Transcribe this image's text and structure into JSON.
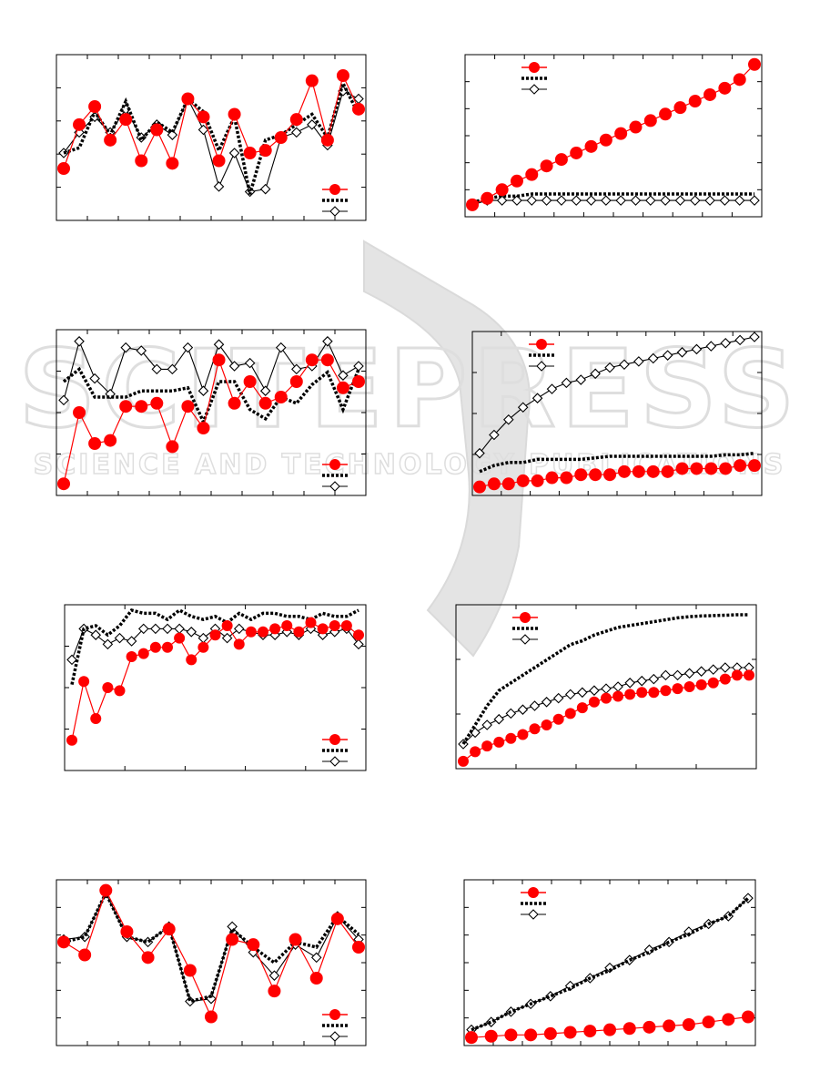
{
  "watermark": {
    "line1": "SCITEPRESS",
    "line2": "SCIENCE AND TECHNOLOGY PUBLICATIONS",
    "color": "#c8c8c8"
  },
  "colors": {
    "red": "#ff0000",
    "black": "#000000",
    "frame": "#000000"
  },
  "chart_data": [
    {
      "type": "line",
      "ylim": [
        0,
        6
      ],
      "x": [
        1,
        2,
        3,
        4,
        5,
        6,
        7,
        8,
        9,
        10,
        11,
        12,
        13,
        14,
        15,
        16,
        17,
        18,
        19,
        20
      ],
      "series": [
        {
          "values": [
            1.8,
            3.5,
            4.2,
            2.9,
            3.7,
            2.1,
            3.3,
            2.0,
            4.5,
            3.8,
            2.1,
            3.9,
            2.4,
            2.5,
            3.0,
            3.7,
            5.2,
            2.9,
            5.4,
            4.1
          ],
          "marker": "circle"
        },
        {
          "values": [
            2.4,
            2.6,
            4.0,
            3.1,
            4.4,
            2.9,
            3.6,
            3.2,
            4.5,
            4.0,
            2.5,
            3.8,
            0.8,
            2.9,
            3.1,
            3.5,
            3.9,
            3.0,
            5.1,
            3.9
          ],
          "marker": "none"
        },
        {
          "values": [
            2.4,
            3.2,
            3.8,
            3.2,
            4.1,
            3.0,
            3.5,
            3.1,
            4.5,
            3.3,
            1.1,
            2.4,
            0.9,
            1.0,
            3.0,
            3.2,
            3.5,
            2.7,
            4.8,
            4.5
          ],
          "marker": "diamond"
        }
      ],
      "legend": "bottom-right"
    },
    {
      "type": "line",
      "ylim": [
        0,
        7
      ],
      "x": [
        1,
        2,
        3,
        4,
        5,
        6,
        7,
        8,
        9,
        10,
        11,
        12,
        13,
        14,
        15,
        16,
        17,
        18,
        19,
        20
      ],
      "series": [
        {
          "values": [
            0.3,
            0.6,
            1.0,
            1.4,
            1.7,
            2.1,
            2.4,
            2.7,
            3.0,
            3.3,
            3.6,
            3.9,
            4.2,
            4.5,
            4.8,
            5.1,
            5.4,
            5.7,
            6.1,
            6.8
          ],
          "marker": "circle"
        },
        {
          "values": [
            0.4,
            0.6,
            0.7,
            0.7,
            0.8,
            0.8,
            0.8,
            0.8,
            0.8,
            0.8,
            0.8,
            0.8,
            0.8,
            0.8,
            0.8,
            0.8,
            0.8,
            0.8,
            0.8,
            0.8
          ],
          "marker": "none"
        },
        {
          "values": [
            0.3,
            0.5,
            0.5,
            0.5,
            0.5,
            0.5,
            0.5,
            0.5,
            0.5,
            0.5,
            0.5,
            0.5,
            0.5,
            0.5,
            0.5,
            0.5,
            0.5,
            0.5,
            0.5,
            0.5
          ],
          "marker": "diamond"
        }
      ],
      "legend": "top-left"
    },
    {
      "type": "line",
      "ylim": [
        0,
        5
      ],
      "x": [
        1,
        2,
        3,
        4,
        5,
        6,
        7,
        8,
        9,
        10,
        11,
        12,
        13,
        14,
        15,
        16,
        17,
        18,
        19,
        20
      ],
      "series": [
        {
          "values": [
            0.2,
            2.5,
            1.5,
            1.6,
            2.7,
            2.7,
            2.8,
            1.4,
            2.7,
            2.0,
            4.2,
            2.8,
            3.5,
            2.8,
            3.0,
            3.5,
            4.2,
            4.2,
            3.3,
            3.5
          ],
          "marker": "circle"
        },
        {
          "values": [
            3.5,
            3.9,
            3.0,
            3.0,
            3.0,
            3.2,
            3.2,
            3.2,
            3.3,
            2.2,
            3.5,
            3.5,
            2.6,
            2.3,
            3.0,
            2.8,
            3.4,
            3.8,
            2.6,
            3.9
          ],
          "marker": "none"
        },
        {
          "values": [
            2.9,
            4.8,
            3.6,
            3.1,
            4.6,
            4.5,
            3.9,
            3.9,
            4.6,
            3.2,
            4.7,
            4.0,
            4.1,
            3.2,
            4.6,
            3.9,
            4.0,
            4.8,
            3.7,
            4.0
          ],
          "marker": "diamond"
        }
      ],
      "legend": "bottom-right"
    },
    {
      "type": "line",
      "ylim": [
        0,
        5
      ],
      "x": [
        1,
        2,
        3,
        4,
        5,
        6,
        7,
        8,
        9,
        10,
        11,
        12,
        13,
        14,
        15,
        16,
        17,
        18,
        19,
        20
      ],
      "series": [
        {
          "values": [
            0.1,
            0.2,
            0.2,
            0.3,
            0.3,
            0.4,
            0.4,
            0.5,
            0.5,
            0.5,
            0.6,
            0.6,
            0.6,
            0.6,
            0.7,
            0.7,
            0.7,
            0.7,
            0.8,
            0.8
          ],
          "marker": "circle"
        },
        {
          "values": [
            0.6,
            0.8,
            0.9,
            0.9,
            1.0,
            1.0,
            1.0,
            1.0,
            1.05,
            1.1,
            1.1,
            1.1,
            1.1,
            1.1,
            1.1,
            1.1,
            1.1,
            1.15,
            1.15,
            1.2
          ],
          "marker": "none"
        },
        {
          "values": [
            1.2,
            1.8,
            2.3,
            2.7,
            3.0,
            3.3,
            3.5,
            3.6,
            3.8,
            4.0,
            4.1,
            4.2,
            4.3,
            4.4,
            4.5,
            4.6,
            4.7,
            4.8,
            4.9,
            5.0
          ],
          "marker": "diamond"
        }
      ],
      "legend": "top-left"
    },
    {
      "type": "line",
      "ylim": [
        0,
        5
      ],
      "x": [
        1,
        2,
        3,
        4,
        5,
        6,
        7,
        8,
        9,
        10,
        11,
        12,
        13,
        14,
        15,
        16,
        17,
        18,
        19,
        20,
        21,
        22,
        23,
        24,
        25
      ],
      "series": [
        {
          "values": [
            0.8,
            2.7,
            1.5,
            2.5,
            2.4,
            3.5,
            3.6,
            3.8,
            3.8,
            4.1,
            3.4,
            3.8,
            4.2,
            4.5,
            3.9,
            4.3,
            4.3,
            4.4,
            4.5,
            4.3,
            4.6,
            4.4,
            4.5,
            4.5,
            4.2
          ],
          "marker": "circle"
        },
        {
          "values": [
            2.6,
            4.4,
            4.5,
            4.2,
            4.5,
            5.0,
            4.9,
            4.9,
            4.7,
            5.0,
            4.8,
            4.7,
            4.8,
            4.6,
            4.9,
            4.7,
            4.9,
            4.9,
            4.8,
            4.8,
            4.7,
            4.9,
            4.8,
            4.8,
            5.0
          ],
          "marker": "none"
        },
        {
          "values": [
            3.4,
            4.4,
            4.2,
            3.9,
            4.1,
            4.0,
            4.4,
            4.4,
            4.4,
            4.4,
            4.3,
            4.1,
            4.4,
            4.1,
            4.4,
            4.3,
            4.2,
            4.2,
            4.3,
            4.2,
            4.4,
            4.2,
            4.3,
            4.4,
            3.9
          ],
          "marker": "diamond"
        }
      ],
      "legend": "bottom-right"
    },
    {
      "type": "line",
      "ylim": [
        0,
        4
      ],
      "x": [
        1,
        2,
        3,
        4,
        5,
        6,
        7,
        8,
        9,
        10,
        11,
        12,
        13,
        14,
        15,
        16,
        17,
        18,
        19,
        20,
        21,
        22,
        23,
        24,
        25
      ],
      "series": [
        {
          "values": [
            0.05,
            0.3,
            0.45,
            0.55,
            0.65,
            0.75,
            0.9,
            1.0,
            1.15,
            1.3,
            1.45,
            1.6,
            1.7,
            1.75,
            1.8,
            1.85,
            1.85,
            1.9,
            1.95,
            2.0,
            2.05,
            2.1,
            2.2,
            2.3,
            2.3
          ],
          "marker": "circle"
        },
        {
          "values": [
            0.5,
            1.0,
            1.5,
            1.9,
            2.1,
            2.3,
            2.5,
            2.7,
            2.9,
            3.1,
            3.2,
            3.35,
            3.45,
            3.55,
            3.6,
            3.65,
            3.7,
            3.75,
            3.8,
            3.83,
            3.85,
            3.86,
            3.87,
            3.88,
            3.88
          ],
          "marker": "none"
        },
        {
          "values": [
            0.5,
            0.8,
            1.0,
            1.15,
            1.3,
            1.4,
            1.5,
            1.6,
            1.7,
            1.8,
            1.85,
            1.9,
            1.95,
            2.0,
            2.1,
            2.15,
            2.2,
            2.3,
            2.3,
            2.35,
            2.4,
            2.45,
            2.5,
            2.5,
            2.5
          ],
          "marker": "diamond"
        }
      ],
      "legend": "top-left"
    },
    {
      "type": "line",
      "ylim": [
        0,
        6
      ],
      "x": [
        1,
        2,
        3,
        4,
        5,
        6,
        7,
        8,
        9,
        10,
        11,
        12,
        13,
        14,
        15
      ],
      "series": [
        {
          "values": [
            3.8,
            3.3,
            5.8,
            4.2,
            3.2,
            4.3,
            2.7,
            0.9,
            3.9,
            3.7,
            1.9,
            3.9,
            2.4,
            4.7,
            3.6
          ],
          "marker": "circle"
        },
        {
          "values": [
            3.8,
            4.0,
            5.7,
            4.0,
            3.8,
            4.4,
            1.5,
            1.7,
            4.3,
            3.6,
            3.0,
            3.8,
            3.6,
            4.8,
            4.1
          ],
          "marker": "none"
        },
        {
          "values": [
            3.9,
            4.0,
            5.7,
            4.0,
            3.8,
            4.4,
            1.5,
            1.6,
            4.4,
            3.4,
            2.5,
            3.7,
            3.2,
            4.8,
            3.9
          ],
          "marker": "diamond"
        }
      ],
      "legend": "bottom-right"
    },
    {
      "type": "line",
      "ylim": [
        0,
        6
      ],
      "x": [
        1,
        2,
        3,
        4,
        5,
        6,
        7,
        8,
        9,
        10,
        11,
        12,
        13,
        14,
        15
      ],
      "series": [
        {
          "values": [
            0.1,
            0.15,
            0.2,
            0.2,
            0.25,
            0.3,
            0.35,
            0.4,
            0.45,
            0.5,
            0.55,
            0.6,
            0.7,
            0.8,
            0.9
          ],
          "marker": "circle"
        },
        {
          "values": [
            0.4,
            0.7,
            1.1,
            1.4,
            1.7,
            2.0,
            2.4,
            2.7,
            3.1,
            3.4,
            3.8,
            4.1,
            4.5,
            4.8,
            5.5
          ],
          "marker": "none"
        },
        {
          "values": [
            0.4,
            0.7,
            1.1,
            1.4,
            1.7,
            2.1,
            2.4,
            2.8,
            3.1,
            3.5,
            3.8,
            4.2,
            4.5,
            4.8,
            5.5
          ],
          "marker": "diamond"
        }
      ],
      "legend": "top-left"
    }
  ]
}
